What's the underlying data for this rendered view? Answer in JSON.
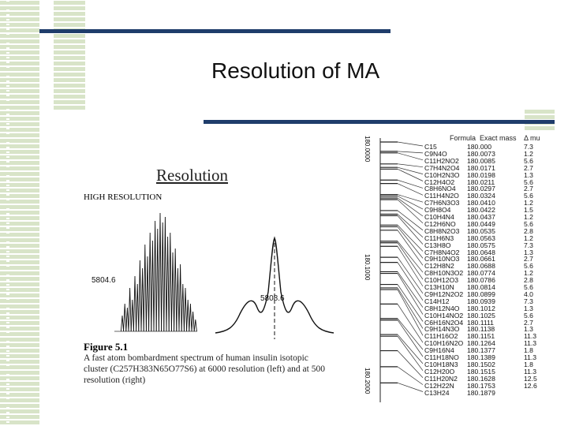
{
  "slide": {
    "title": "Resolution of MA"
  },
  "figure": {
    "heading": "Resolution",
    "high_res_label": "HIGH RESOLUTION",
    "peak_left_label": "5804.6",
    "peak_right_label": "5808.6",
    "title": "Figure 5.1",
    "caption_lines": [
      "A fast atom bombardment spectrum of human insulin isotopic",
      "cluster (C257H383N65O77S6) at 6000 resolution (left) and at 500",
      "resolution (right)"
    ]
  },
  "mass_scale": {
    "labels": [
      "180.0000",
      "180.1000",
      "180.2000"
    ]
  },
  "table": {
    "headers": [
      "Formula",
      "Exact mass",
      "Δ mu"
    ],
    "rows": [
      [
        "C15",
        "180.000",
        "7.3"
      ],
      [
        "C9N4O",
        "180.0073",
        "1.2"
      ],
      [
        "C11H2NO2",
        "180.0085",
        "5.6"
      ],
      [
        "C7H4N2O4",
        "180.0171",
        "2.7"
      ],
      [
        "C10H2N3O",
        "180.0198",
        "1.3"
      ],
      [
        "C12H4O2",
        "180.0211",
        "5.6"
      ],
      [
        "C8H6NO4",
        "180.0297",
        "2.7"
      ],
      [
        "C11H4N2O",
        "180.0324",
        "5.6"
      ],
      [
        "C7H6N3O3",
        "180.0410",
        "1.2"
      ],
      [
        "C9H8O4",
        "180.0422",
        "1.5"
      ],
      [
        "C10H4N4",
        "180.0437",
        "1.2"
      ],
      [
        "C12H6NO",
        "180.0449",
        "5.6"
      ],
      [
        "C8H8N2O3",
        "180.0535",
        "2.8"
      ],
      [
        "C11H6N3",
        "180.0563",
        "1.2"
      ],
      [
        "C13H8O",
        "180.0575",
        "7.3"
      ],
      [
        "C7H8N4O2",
        "180.0648",
        "1.3"
      ],
      [
        "C9H10NO3",
        "180.0661",
        "2.7"
      ],
      [
        "C12H8N2",
        "180.0688",
        "5.6"
      ],
      [
        "C8H10N3O2",
        "180.0774",
        "1.2"
      ],
      [
        "C10H12O3",
        "180.0786",
        "2.8"
      ],
      [
        "C13H10N",
        "180.0814",
        "5.6"
      ],
      [
        "C9H12N2O2",
        "180.0899",
        "4.0"
      ],
      [
        "C14H12",
        "180.0939",
        "7.3"
      ],
      [
        "C8H12N4O",
        "180.1012",
        "1.3"
      ],
      [
        "C10H14NO2",
        "180.1025",
        "5.6"
      ],
      [
        "C6H16N2O4",
        "180.1111",
        "2.7"
      ],
      [
        "C9H14N3O",
        "180.1138",
        "1.3"
      ],
      [
        "C11H16O2",
        "180.1151",
        "11.3"
      ],
      [
        "C10H16N2O",
        "180.1264",
        "11.3"
      ],
      [
        "C9H16N4",
        "180.1377",
        "1.8"
      ],
      [
        "C11H18NO",
        "180.1389",
        "11.3"
      ],
      [
        "C10H18N3",
        "180.1502",
        "1.8"
      ],
      [
        "C12H20O",
        "180.1515",
        "11.3"
      ],
      [
        "C11H20N2",
        "180.1628",
        "12.5"
      ],
      [
        "C12H22N",
        "180.1753",
        "12.6"
      ],
      [
        "C13H24",
        "180.1879",
        ""
      ]
    ]
  }
}
